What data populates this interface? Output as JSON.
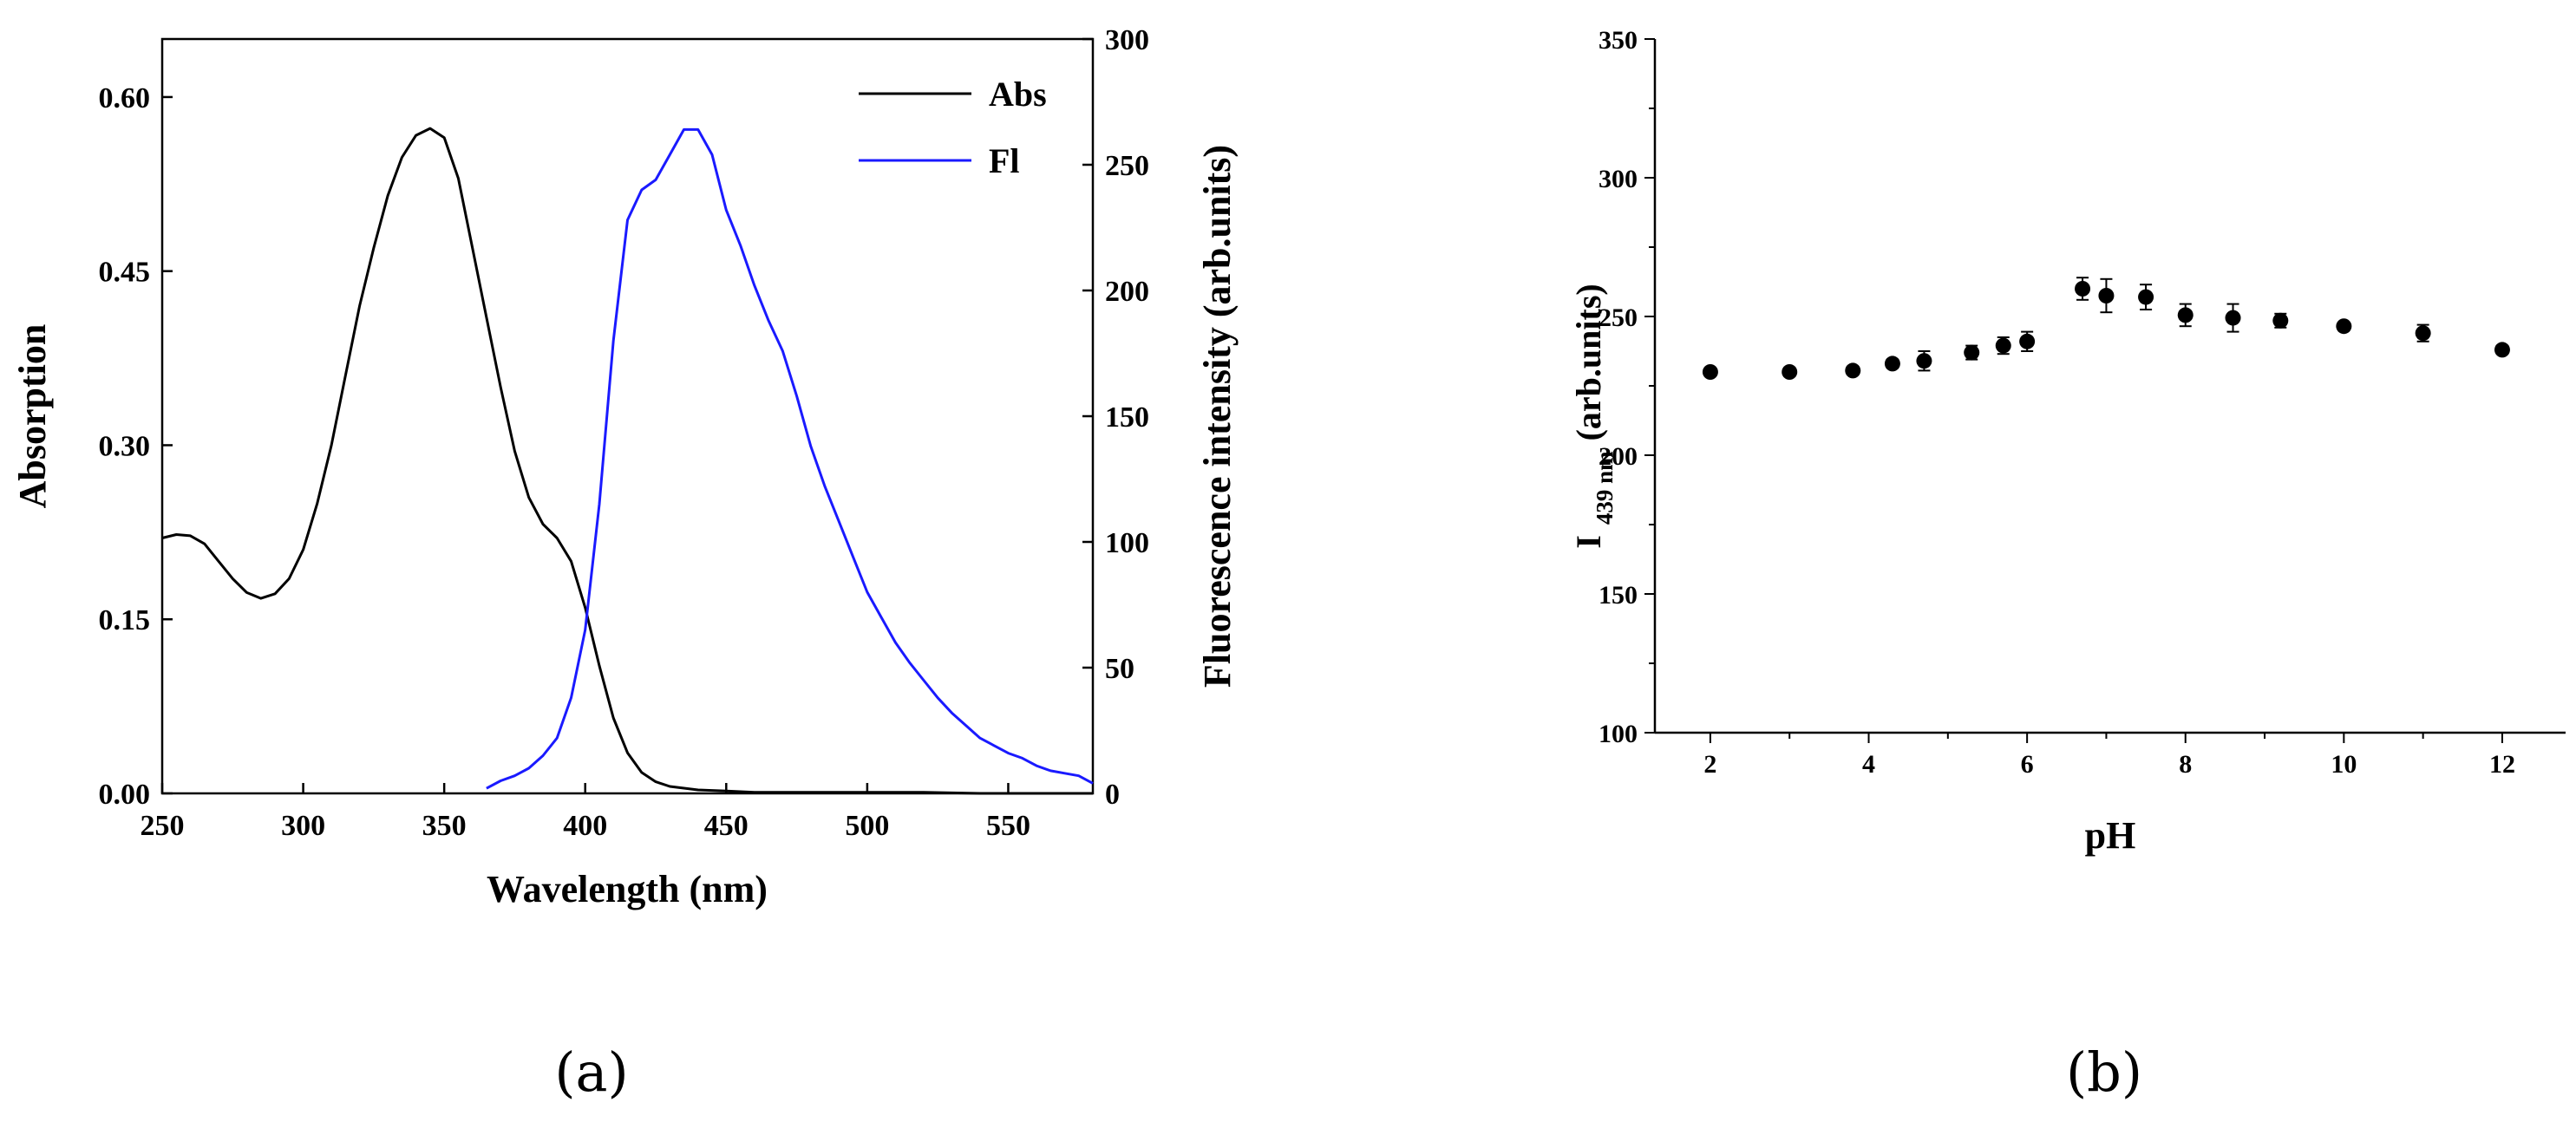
{
  "panel_labels": {
    "a": "(a)",
    "b": "(b)"
  },
  "chart_data": [
    {
      "id": "a",
      "type": "line",
      "xlabel": "Wavelength (nm)",
      "ylabel_left": "Absorption",
      "ylabel_right": "Fluorescence intensity (arb.units)",
      "xlim": [
        250,
        580
      ],
      "ylim_left": [
        0,
        0.65
      ],
      "ylim_right": [
        0,
        300
      ],
      "xticks": [
        "250",
        "300",
        "350",
        "400",
        "450",
        "500",
        "550"
      ],
      "yticks_left": [
        "0.00",
        "0.15",
        "0.30",
        "0.45",
        "0.60"
      ],
      "yticks_right": [
        "0",
        "50",
        "100",
        "150",
        "200",
        "250",
        "300"
      ],
      "legend": {
        "placement": "top-right",
        "entries": [
          {
            "label": "Abs",
            "color": "#000000"
          },
          {
            "label": "Fl",
            "color": "#1a1aff"
          }
        ]
      },
      "series": [
        {
          "name": "Abs",
          "axis": "left",
          "color": "#000000",
          "x": [
            250,
            255,
            260,
            265,
            270,
            275,
            280,
            285,
            290,
            295,
            300,
            305,
            310,
            315,
            320,
            325,
            330,
            335,
            340,
            345,
            350,
            355,
            360,
            365,
            370,
            375,
            380,
            385,
            390,
            395,
            400,
            405,
            410,
            415,
            420,
            425,
            430,
            440,
            450,
            460,
            480,
            500,
            520,
            540,
            560,
            580
          ],
          "y": [
            0.22,
            0.223,
            0.222,
            0.215,
            0.2,
            0.185,
            0.173,
            0.168,
            0.172,
            0.185,
            0.21,
            0.25,
            0.3,
            0.36,
            0.42,
            0.47,
            0.515,
            0.548,
            0.567,
            0.573,
            0.565,
            0.53,
            0.47,
            0.41,
            0.35,
            0.295,
            0.255,
            0.232,
            0.22,
            0.2,
            0.16,
            0.11,
            0.065,
            0.035,
            0.018,
            0.01,
            0.006,
            0.003,
            0.002,
            0.001,
            0.001,
            0.001,
            0.001,
            0.0,
            0.0,
            0.0
          ]
        },
        {
          "name": "Fl",
          "axis": "right",
          "color": "#1a1aff",
          "x": [
            365,
            370,
            375,
            380,
            385,
            390,
            395,
            400,
            405,
            410,
            415,
            420,
            425,
            430,
            435,
            440,
            445,
            450,
            455,
            460,
            465,
            470,
            475,
            480,
            485,
            490,
            495,
            500,
            505,
            510,
            515,
            520,
            525,
            530,
            535,
            540,
            545,
            550,
            555,
            560,
            565,
            570,
            575,
            580
          ],
          "y": [
            2,
            5,
            7,
            10,
            15,
            22,
            38,
            65,
            115,
            180,
            228,
            240,
            244,
            254,
            264,
            264,
            254,
            232,
            218,
            202,
            188,
            176,
            158,
            138,
            122,
            108,
            94,
            80,
            70,
            60,
            52,
            45,
            38,
            32,
            27,
            22,
            19,
            16,
            14,
            11,
            9,
            8,
            7,
            4
          ]
        }
      ]
    },
    {
      "id": "b",
      "type": "scatter",
      "xlabel": "pH",
      "ylabel_main": "I",
      "ylabel_sub": "439 nm",
      "ylabel_suffix": "(arb.units)",
      "xlim": [
        1.3,
        12.8
      ],
      "ylim": [
        100,
        350
      ],
      "xticks": [
        "2",
        "4",
        "6",
        "8",
        "10",
        "12"
      ],
      "yticks": [
        "100",
        "150",
        "200",
        "250",
        "300",
        "350"
      ],
      "series": [
        {
          "name": "I439",
          "color": "#000000",
          "x": [
            2,
            3,
            3.8,
            4.3,
            4.7,
            5.3,
            5.7,
            6,
            6.7,
            7,
            7.5,
            8,
            8.6,
            9.2,
            10,
            11,
            12
          ],
          "y": [
            230,
            230,
            230.5,
            233,
            234,
            237,
            239.5,
            241,
            260,
            257.5,
            257,
            250.5,
            249.5,
            248.5,
            246.5,
            244,
            238
          ],
          "err": [
            0,
            1.5,
            0,
            1.5,
            3.5,
            2.5,
            3,
            3.5,
            4,
            6,
            4.5,
            4,
            5,
            2.5,
            0,
            3,
            0
          ]
        }
      ]
    }
  ]
}
